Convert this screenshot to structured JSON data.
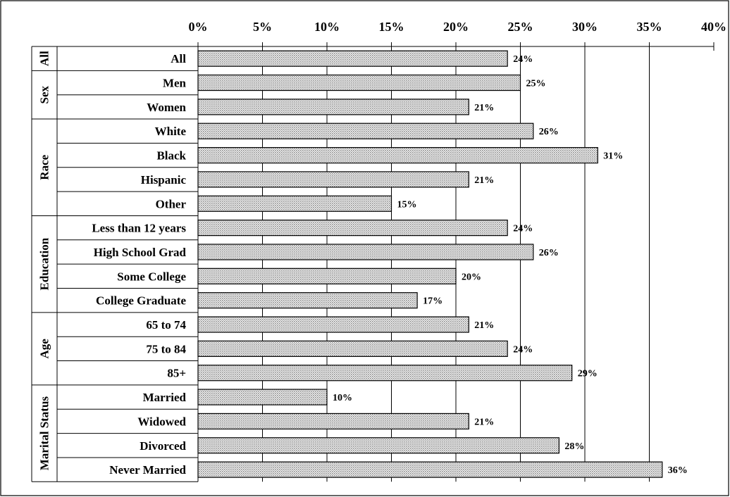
{
  "chart_data": {
    "type": "bar",
    "orientation": "horizontal",
    "title": "",
    "xlabel": "",
    "ylabel": "",
    "xlim": [
      0,
      40
    ],
    "x_ticks": [
      "0%",
      "5%",
      "10%",
      "15%",
      "20%",
      "25%",
      "30%",
      "35%",
      "40%"
    ],
    "x_tick_values": [
      0,
      5,
      10,
      15,
      20,
      25,
      30,
      35,
      40
    ],
    "grid": true,
    "legend": "none",
    "colors": {
      "bar_fill": "#d8d8d8",
      "bar_edge": "#000000",
      "background": "#ffffff"
    },
    "groups": [
      {
        "name": "All",
        "categories": [
          "All"
        ],
        "values": [
          24
        ],
        "labels": [
          "24%"
        ]
      },
      {
        "name": "Sex",
        "categories": [
          "Men",
          "Women"
        ],
        "values": [
          25,
          21
        ],
        "labels": [
          "25%",
          "21%"
        ]
      },
      {
        "name": "Race",
        "categories": [
          "White",
          "Black",
          "Hispanic",
          "Other"
        ],
        "values": [
          26,
          31,
          21,
          15
        ],
        "labels": [
          "26%",
          "31%",
          "21%",
          "15%"
        ]
      },
      {
        "name": "Education",
        "categories": [
          "Less than 12 years",
          "High School Grad",
          "Some College",
          "College Graduate"
        ],
        "values": [
          24,
          26,
          20,
          17
        ],
        "labels": [
          "24%",
          "26%",
          "20%",
          "17%"
        ]
      },
      {
        "name": "Age",
        "categories": [
          "65 to 74",
          "75 to 84",
          "85+"
        ],
        "values": [
          21,
          24,
          29
        ],
        "labels": [
          "21%",
          "24%",
          "29%"
        ]
      },
      {
        "name": "Marital Status",
        "categories": [
          "Married",
          "Widowed",
          "Divorced",
          "Never Married"
        ],
        "values": [
          10,
          21,
          28,
          36
        ],
        "labels": [
          "10%",
          "21%",
          "28%",
          "36%"
        ]
      }
    ]
  }
}
